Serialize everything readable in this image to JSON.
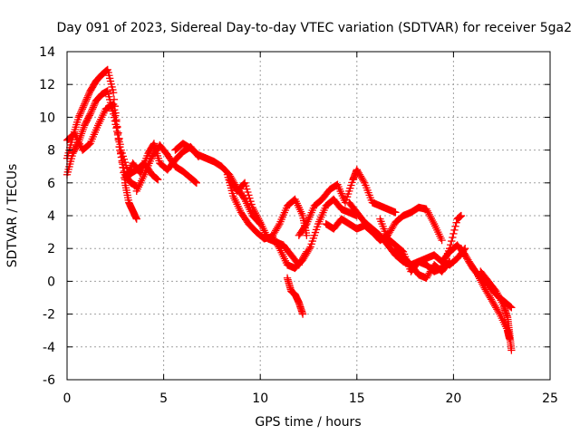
{
  "chart_data": {
    "type": "scatter",
    "title": "Day 091 of 2023, Sidereal Day-to-day VTEC variation (SDTVAR) for receiver 5ga2",
    "xlabel": "GPS time / hours",
    "ylabel": "SDTVAR / TECUs",
    "xlim": [
      0,
      25
    ],
    "ylim": [
      -6,
      14
    ],
    "xticks": [
      0,
      5,
      10,
      15,
      20,
      25
    ],
    "yticks": [
      -6,
      -4,
      -2,
      0,
      2,
      4,
      6,
      8,
      10,
      12,
      14
    ],
    "grid": true,
    "marker": "plus",
    "series": [
      {
        "name": "SDTVAR",
        "color": "#ff0000",
        "tracks": [
          {
            "x": [
              0.0,
              0.3,
              0.6,
              0.9,
              1.2,
              1.5,
              1.8,
              2.1,
              2.4,
              2.7,
              3.0,
              3.2,
              3.4,
              3.6
            ],
            "y": [
              6.5,
              7.8,
              8.5,
              9.5,
              10.2,
              11.0,
              11.4,
              11.6,
              10.2,
              8.5,
              6.0,
              4.8,
              4.3,
              3.8
            ]
          },
          {
            "x": [
              0.0,
              0.3,
              0.6,
              0.9,
              1.2,
              1.5,
              1.8,
              2.1,
              2.4,
              2.7,
              3.0,
              3.3,
              3.6
            ],
            "y": [
              7.5,
              8.8,
              10.0,
              10.8,
              11.6,
              12.2,
              12.6,
              12.9,
              11.5,
              8.2,
              6.5,
              6.0,
              5.8
            ]
          },
          {
            "x": [
              0.0,
              0.4,
              0.8,
              1.2,
              1.6,
              2.0,
              2.4,
              2.8,
              3.2,
              3.6,
              4.0,
              4.4,
              4.7
            ],
            "y": [
              8.6,
              9.0,
              8.0,
              8.4,
              9.5,
              10.5,
              10.8,
              8.0,
              6.5,
              6.8,
              7.2,
              6.5,
              6.2
            ]
          },
          {
            "x": [
              3.0,
              3.4,
              3.8,
              4.2,
              4.5,
              4.8,
              5.2,
              5.6,
              6.0,
              6.4,
              6.8
            ],
            "y": [
              6.2,
              7.2,
              6.6,
              7.8,
              8.4,
              7.2,
              6.8,
              7.4,
              7.9,
              8.2,
              7.6
            ]
          },
          {
            "x": [
              3.6,
              4.0,
              4.4,
              4.8,
              5.2,
              5.6,
              6.0,
              6.4,
              6.7
            ],
            "y": [
              5.5,
              6.5,
              7.6,
              8.3,
              7.7,
              7.0,
              6.7,
              6.3,
              6.0
            ]
          },
          {
            "x": [
              5.6,
              6.0,
              6.4,
              6.8,
              7.2,
              7.6,
              8.0,
              8.4,
              8.8,
              9.2,
              9.6,
              10.0
            ],
            "y": [
              8.0,
              8.4,
              8.1,
              7.7,
              7.5,
              7.3,
              7.0,
              6.5,
              5.7,
              5.0,
              4.0,
              3.5
            ]
          },
          {
            "x": [
              8.3,
              8.6,
              9.0,
              9.4,
              9.8,
              10.2,
              10.6,
              11.0,
              11.4,
              11.8,
              12.2,
              12.4
            ],
            "y": [
              6.5,
              5.2,
              4.2,
              3.5,
              3.0,
              2.6,
              2.7,
              3.5,
              4.6,
              5.0,
              4.0,
              2.8
            ]
          },
          {
            "x": [
              8.4,
              8.8,
              9.2,
              9.6,
              10.0,
              10.4,
              10.8,
              11.2,
              11.6,
              12.0,
              12.4
            ],
            "y": [
              6.2,
              5.5,
              6.0,
              4.5,
              3.6,
              2.6,
              2.4,
              2.2,
              1.6,
              1.0,
              1.8
            ]
          },
          {
            "x": [
              10.6,
              11.0,
              11.4,
              11.8,
              12.2,
              12.6,
              13.0,
              13.4,
              13.8,
              14.2,
              14.6,
              15.0
            ],
            "y": [
              2.8,
              2.0,
              1.0,
              0.8,
              1.3,
              2.1,
              3.5,
              4.6,
              5.0,
              4.4,
              4.2,
              4.0
            ]
          },
          {
            "x": [
              11.4,
              11.6,
              11.8,
              12.0,
              12.2
            ],
            "y": [
              0.2,
              -0.6,
              -0.8,
              -1.3,
              -2.0
            ]
          },
          {
            "x": [
              12.0,
              12.4,
              12.8,
              13.2,
              13.6,
              14.0,
              14.4,
              14.8,
              15.0,
              15.4,
              15.8,
              16.2,
              16.6,
              17.0
            ],
            "y": [
              2.8,
              3.5,
              4.6,
              5.0,
              5.6,
              5.9,
              4.8,
              6.2,
              6.8,
              6.0,
              4.8,
              4.6,
              4.4,
              4.2
            ]
          },
          {
            "x": [
              13.4,
              13.8,
              14.2,
              14.6,
              15.0,
              15.4,
              15.8,
              16.2,
              16.6,
              17.0,
              17.4,
              17.8,
              18.2,
              18.6,
              19.0,
              19.4
            ],
            "y": [
              3.5,
              3.2,
              3.8,
              3.5,
              3.2,
              3.4,
              3.0,
              2.5,
              2.8,
              3.6,
              4.0,
              4.2,
              4.5,
              4.4,
              3.5,
              2.5
            ]
          },
          {
            "x": [
              14.6,
              15.0,
              15.4,
              15.8,
              16.2,
              16.6,
              17.0,
              17.4,
              17.8,
              18.2,
              18.6,
              19.0,
              19.4,
              19.8,
              20.2,
              20.6
            ],
            "y": [
              4.8,
              4.2,
              3.6,
              3.2,
              2.8,
              2.2,
              1.6,
              1.2,
              1.0,
              1.2,
              1.4,
              1.6,
              1.2,
              1.0,
              1.4,
              2.0
            ]
          },
          {
            "x": [
              16.2,
              16.6,
              17.0,
              17.4,
              17.8,
              18.2,
              18.6,
              19.0,
              19.4,
              19.8,
              20.2,
              20.4
            ],
            "y": [
              3.8,
              2.6,
              2.2,
              1.8,
              0.6,
              1.2,
              1.0,
              0.6,
              0.8,
              2.0,
              3.8,
              4.0
            ]
          },
          {
            "x": [
              17.0,
              17.4,
              17.8,
              18.2,
              18.6,
              19.0,
              19.4,
              19.8
            ],
            "y": [
              2.0,
              1.5,
              1.0,
              0.4,
              0.2,
              1.0,
              0.6,
              1.2
            ]
          },
          {
            "x": [
              19.4,
              19.8,
              20.2,
              20.6,
              21.0,
              21.4,
              21.8,
              22.2,
              22.6,
              23.0
            ],
            "y": [
              1.2,
              1.8,
              2.2,
              1.6,
              0.8,
              0.2,
              -0.2,
              -0.8,
              -1.2,
              -1.6
            ]
          },
          {
            "x": [
              20.4,
              20.8,
              21.2,
              21.6,
              22.0,
              22.4,
              22.8,
              22.9
            ],
            "y": [
              2.0,
              1.2,
              0.5,
              -0.4,
              -1.2,
              -2.0,
              -3.0,
              -3.5
            ]
          },
          {
            "x": [
              21.4,
              21.8,
              22.2,
              22.6,
              22.8,
              22.9,
              23.0
            ],
            "y": [
              0.6,
              0.0,
              -0.6,
              -1.5,
              -2.2,
              -3.2,
              -4.2
            ]
          }
        ]
      }
    ]
  }
}
